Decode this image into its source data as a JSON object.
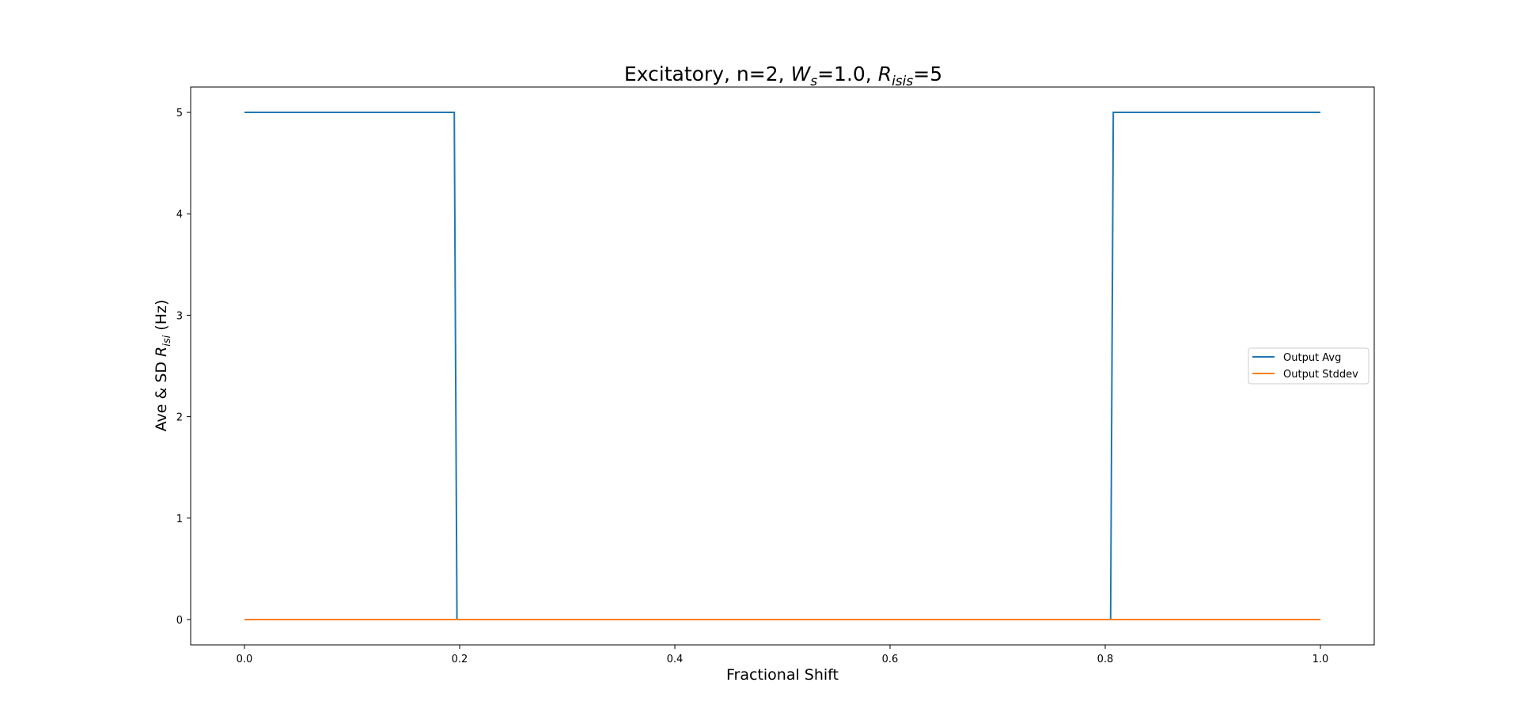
{
  "chart_data": {
    "type": "line",
    "title": {
      "prefix": "Excitatory, n=2, ",
      "w_base": "W",
      "w_sub": "s",
      "w_value": "=1.0, ",
      "r_base": "R",
      "r_sub": "isis",
      "r_value": "=5"
    },
    "xlabel": "Fractional Shift",
    "ylabel": {
      "prefix": "Ave & SD ",
      "r_base": "R",
      "r_sub": "isi",
      "suffix": " (Hz)"
    },
    "xlim": [
      -0.05,
      1.05
    ],
    "ylim": [
      -0.25,
      5.25
    ],
    "xticks": [
      0.0,
      0.2,
      0.4,
      0.6,
      0.8,
      1.0
    ],
    "xtick_labels": [
      "0.0",
      "0.2",
      "0.4",
      "0.6",
      "0.8",
      "1.0"
    ],
    "yticks": [
      0,
      1,
      2,
      3,
      4,
      5
    ],
    "ytick_labels": [
      "0",
      "1",
      "2",
      "3",
      "4",
      "5"
    ],
    "grid": false,
    "legend_position": "center-right",
    "series": [
      {
        "name": "Output Avg",
        "color": "#1f77b4",
        "x": [
          0.0,
          0.195,
          0.1975,
          0.805,
          0.8075,
          1.0
        ],
        "y": [
          5,
          5,
          0,
          0,
          5,
          5
        ]
      },
      {
        "name": "Output Stddev",
        "color": "#ff7f0e",
        "x": [
          0.0,
          1.0
        ],
        "y": [
          0,
          0
        ]
      }
    ]
  }
}
